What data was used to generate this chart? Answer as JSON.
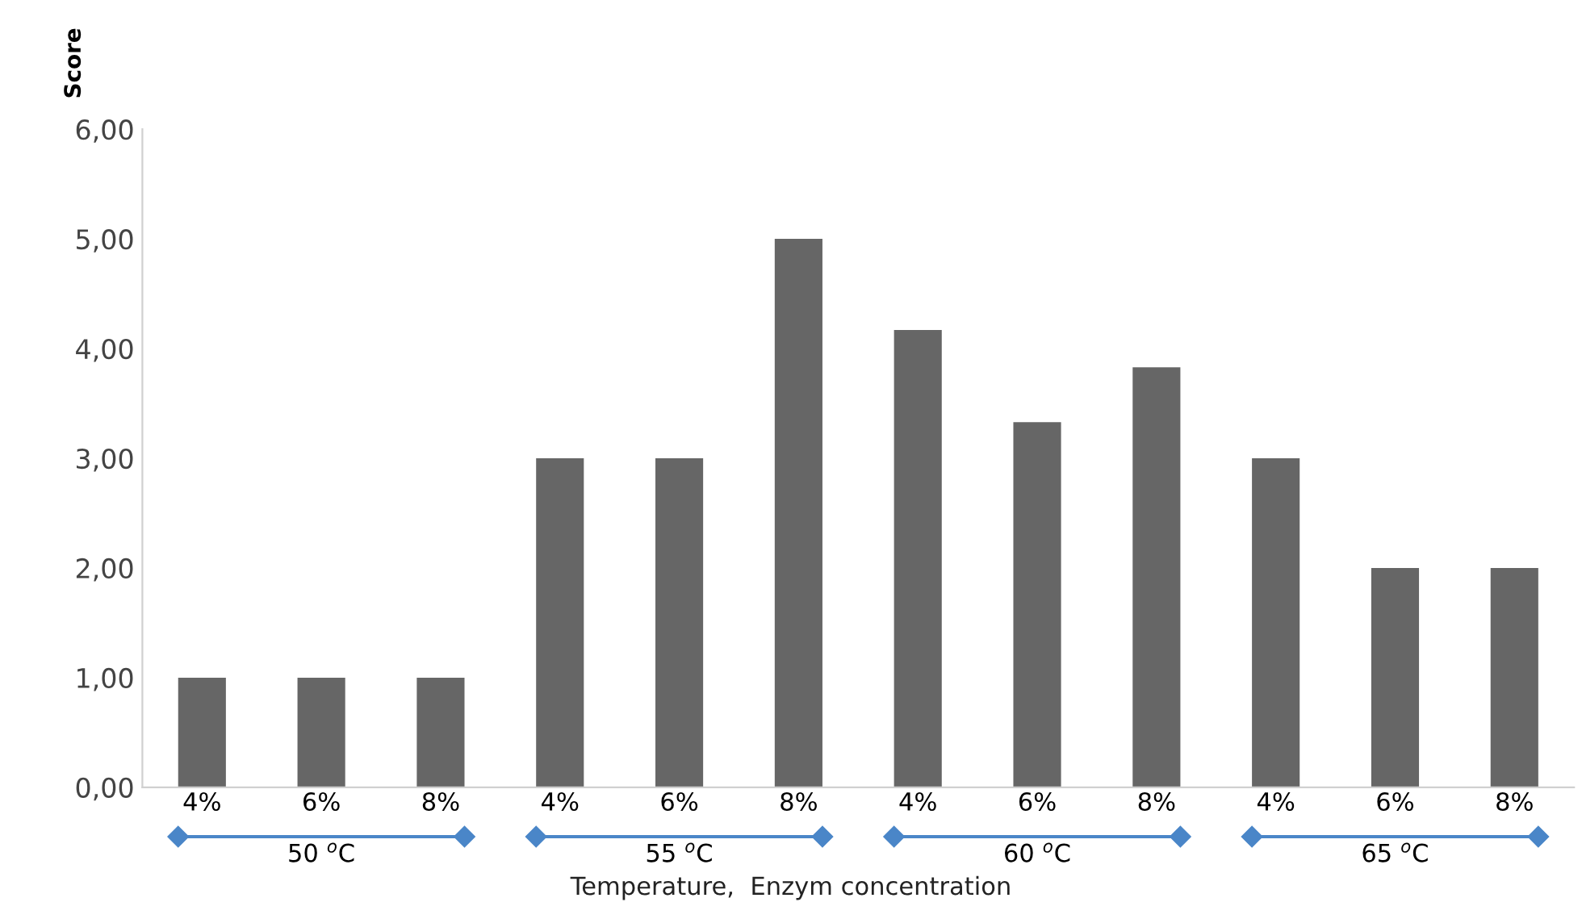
{
  "chart_data": {
    "type": "bar",
    "ylabel": "Score",
    "xlabel": "Temperature,  Enzym concentration",
    "categories": [
      "4%",
      "6%",
      "8%",
      "4%",
      "6%",
      "8%",
      "4%",
      "6%",
      "8%",
      "4%",
      "6%",
      "8%"
    ],
    "values": [
      1,
      1,
      1,
      3,
      3,
      5,
      4.17,
      3.33,
      3.83,
      3,
      2,
      2
    ],
    "color": "#666666",
    "ylim": [
      0,
      6
    ],
    "yticks": [
      {
        "value": 0,
        "label": "0,00"
      },
      {
        "value": 1,
        "label": "1,00"
      },
      {
        "value": 2,
        "label": "2,00"
      },
      {
        "value": 3,
        "label": "3,00"
      },
      {
        "value": 4,
        "label": "4,00"
      },
      {
        "value": 5,
        "label": "5,00"
      },
      {
        "value": 6,
        "label": "6,00"
      }
    ],
    "annotations": [
      "50 $^{o}$C",
      "55 $^{o}$C",
      "60 $^{o}$C",
      "65 $^{o}$C"
    ],
    "grid": false
  }
}
